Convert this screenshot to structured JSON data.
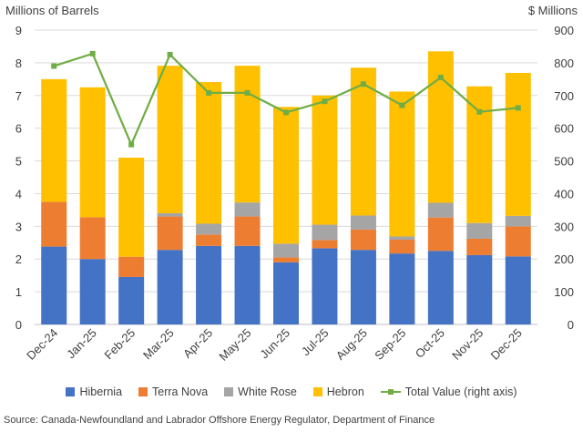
{
  "chart_data": {
    "type": "bar",
    "stacked": true,
    "categories": [
      "Dec-24",
      "Jan-25",
      "Feb-25",
      "Mar-25",
      "Apr-25",
      "May-25",
      "Jun-25",
      "Jul-25",
      "Aug-25",
      "Sep-25",
      "Oct-25",
      "Nov-25",
      "Dec-25"
    ],
    "series": [
      {
        "name": "Hibernia",
        "color": "#4472C4",
        "values": [
          2.38,
          2.0,
          1.45,
          2.28,
          2.4,
          2.4,
          1.9,
          2.33,
          2.28,
          2.17,
          2.25,
          2.12,
          2.08
        ]
      },
      {
        "name": "Terra Nova",
        "color": "#ED7D31",
        "values": [
          1.37,
          1.28,
          0.62,
          1.02,
          0.35,
          0.9,
          0.15,
          0.25,
          0.62,
          0.42,
          1.02,
          0.5,
          0.92
        ]
      },
      {
        "name": "White Rose",
        "color": "#A5A5A5",
        "values": [
          0.0,
          0.0,
          0.0,
          0.1,
          0.33,
          0.43,
          0.42,
          0.47,
          0.43,
          0.1,
          0.45,
          0.48,
          0.32
        ]
      },
      {
        "name": "Hebron",
        "color": "#FFC000",
        "values": [
          3.75,
          3.97,
          3.03,
          4.51,
          4.33,
          4.18,
          4.18,
          3.95,
          4.52,
          4.43,
          4.63,
          4.18,
          4.37
        ]
      }
    ],
    "line_series": {
      "name": "Total Value (right axis)",
      "color": "#70AD47",
      "values": [
        790,
        828,
        550,
        825,
        708,
        708,
        648,
        682,
        735,
        670,
        755,
        650,
        662
      ]
    },
    "ylabel": "Millions of Barrels",
    "ylabel_right": "$ Millions",
    "ylim": [
      0,
      9
    ],
    "yticks": [
      "0",
      "1",
      "2",
      "3",
      "4",
      "5",
      "6",
      "7",
      "8",
      "9"
    ],
    "ylim_right": [
      0,
      900
    ],
    "yticks_right": [
      "0",
      "100",
      "200",
      "300",
      "400",
      "500",
      "600",
      "700",
      "800",
      "900"
    ],
    "grid": true,
    "legend_position": "bottom"
  },
  "source": "Source: Canada-Newfoundland and Labrador Offshore Energy Regulator, Department of Finance"
}
